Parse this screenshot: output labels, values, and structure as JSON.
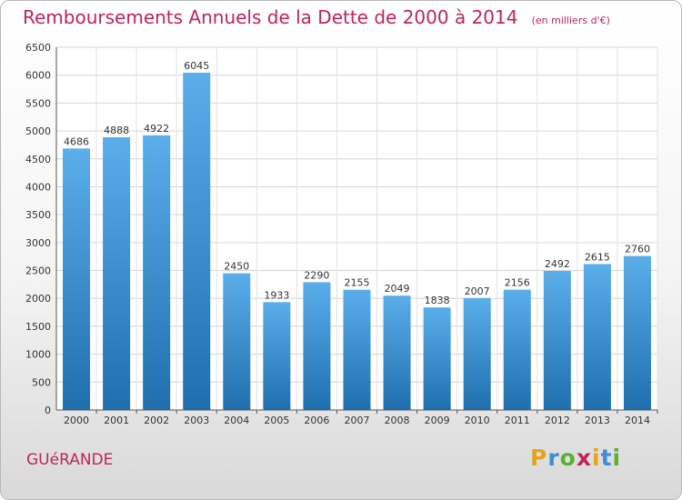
{
  "chart_data": {
    "type": "bar",
    "title": "Remboursements Annuels de la Dette de 2000 à 2014",
    "subtitle": "(en milliers d'€)",
    "categories": [
      "2000",
      "2001",
      "2002",
      "2003",
      "2004",
      "2005",
      "2006",
      "2007",
      "2008",
      "2009",
      "2010",
      "2011",
      "2012",
      "2013",
      "2014"
    ],
    "values": [
      4686,
      4888,
      4922,
      6045,
      2450,
      1933,
      2290,
      2155,
      2049,
      1838,
      2007,
      2156,
      2492,
      2615,
      2760
    ],
    "ylim": [
      0,
      6500
    ],
    "yticks": [
      0,
      500,
      1000,
      1500,
      2000,
      2500,
      3000,
      3500,
      4000,
      4500,
      5000,
      5500,
      6000,
      6500
    ],
    "grid": true,
    "legend": "none"
  },
  "footer": {
    "commune": "GUéRANDE"
  },
  "brand": {
    "letters": [
      "P",
      "r",
      "o",
      "x",
      "i",
      "t",
      "i"
    ],
    "colors": [
      "#e8a31e",
      "#3a8fd6",
      "#5ab031",
      "#c0245c",
      "#e8a31e",
      "#3a8fd6",
      "#5ab031"
    ]
  },
  "colors": {
    "accent": "#c0245c",
    "bar_light": "#5aaeea",
    "bar_dark": "#1f6fae"
  }
}
